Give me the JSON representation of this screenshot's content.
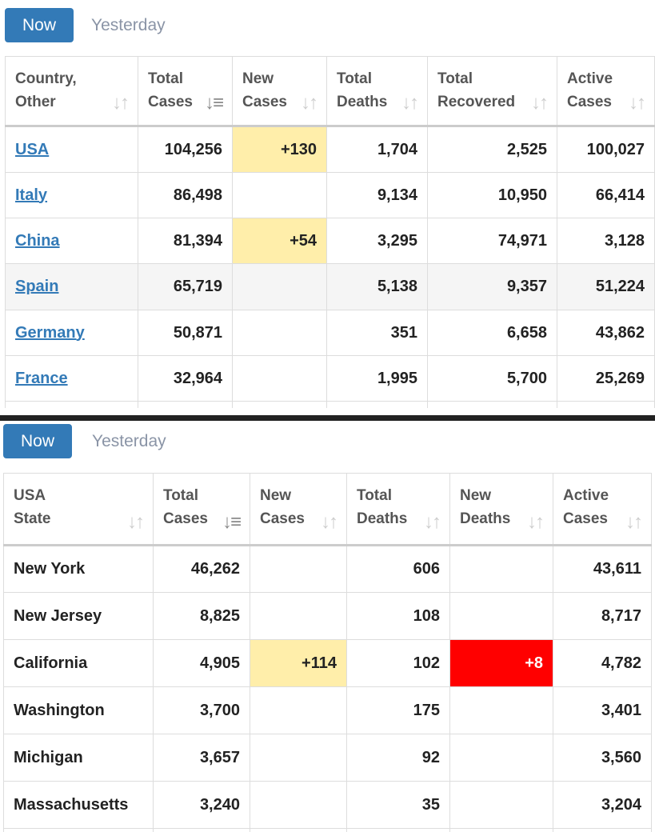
{
  "panel1": {
    "tabs": {
      "now": "Now",
      "yesterday": "Yesterday"
    },
    "headers": [
      {
        "l1": "Country,",
        "l2": "Other"
      },
      {
        "l1": "Total",
        "l2": "Cases"
      },
      {
        "l1": "New",
        "l2": "Cases"
      },
      {
        "l1": "Total",
        "l2": "Deaths"
      },
      {
        "l1": "Total",
        "l2": "Recovered"
      },
      {
        "l1": "Active",
        "l2": "Cases"
      }
    ],
    "rows": [
      {
        "name": "USA",
        "total": "104,256",
        "newc": "+130",
        "deaths": "1,704",
        "recovered": "2,525",
        "active": "100,027"
      },
      {
        "name": "Italy",
        "total": "86,498",
        "newc": "",
        "deaths": "9,134",
        "recovered": "10,950",
        "active": "66,414"
      },
      {
        "name": "China",
        "total": "81,394",
        "newc": "+54",
        "deaths": "3,295",
        "recovered": "74,971",
        "active": "3,128"
      },
      {
        "name": "Spain",
        "total": "65,719",
        "newc": "",
        "deaths": "5,138",
        "recovered": "9,357",
        "active": "51,224"
      },
      {
        "name": "Germany",
        "total": "50,871",
        "newc": "",
        "deaths": "351",
        "recovered": "6,658",
        "active": "43,862"
      },
      {
        "name": "France",
        "total": "32,964",
        "newc": "",
        "deaths": "1,995",
        "recovered": "5,700",
        "active": "25,269"
      }
    ]
  },
  "panel2": {
    "tabs": {
      "now": "Now",
      "yesterday": "Yesterday"
    },
    "headers": [
      {
        "l1": "USA",
        "l2": "State"
      },
      {
        "l1": "Total",
        "l2": "Cases"
      },
      {
        "l1": "New",
        "l2": "Cases"
      },
      {
        "l1": "Total",
        "l2": "Deaths"
      },
      {
        "l1": "New",
        "l2": "Deaths"
      },
      {
        "l1": "Active",
        "l2": "Cases"
      }
    ],
    "rows": [
      {
        "name": "New York",
        "total": "46,262",
        "newc": "",
        "deaths": "606",
        "newd": "",
        "active": "43,611"
      },
      {
        "name": "New Jersey",
        "total": "8,825",
        "newc": "",
        "deaths": "108",
        "newd": "",
        "active": "8,717"
      },
      {
        "name": "California",
        "total": "4,905",
        "newc": "+114",
        "deaths": "102",
        "newd": "+8",
        "active": "4,782"
      },
      {
        "name": "Washington",
        "total": "3,700",
        "newc": "",
        "deaths": "175",
        "newd": "",
        "active": "3,401"
      },
      {
        "name": "Michigan",
        "total": "3,657",
        "newc": "",
        "deaths": "92",
        "newd": "",
        "active": "3,560"
      },
      {
        "name": "Massachusetts",
        "total": "3,240",
        "newc": "",
        "deaths": "35",
        "newd": "",
        "active": "3,204"
      }
    ]
  },
  "icons": {
    "sort_neutral": "sort-icon",
    "sort_active": "sort-amount-down-icon"
  },
  "colors": {
    "accent": "#337ab7",
    "new_cases_bg": "#ffeeaa",
    "new_deaths_bg": "#ff0000"
  }
}
